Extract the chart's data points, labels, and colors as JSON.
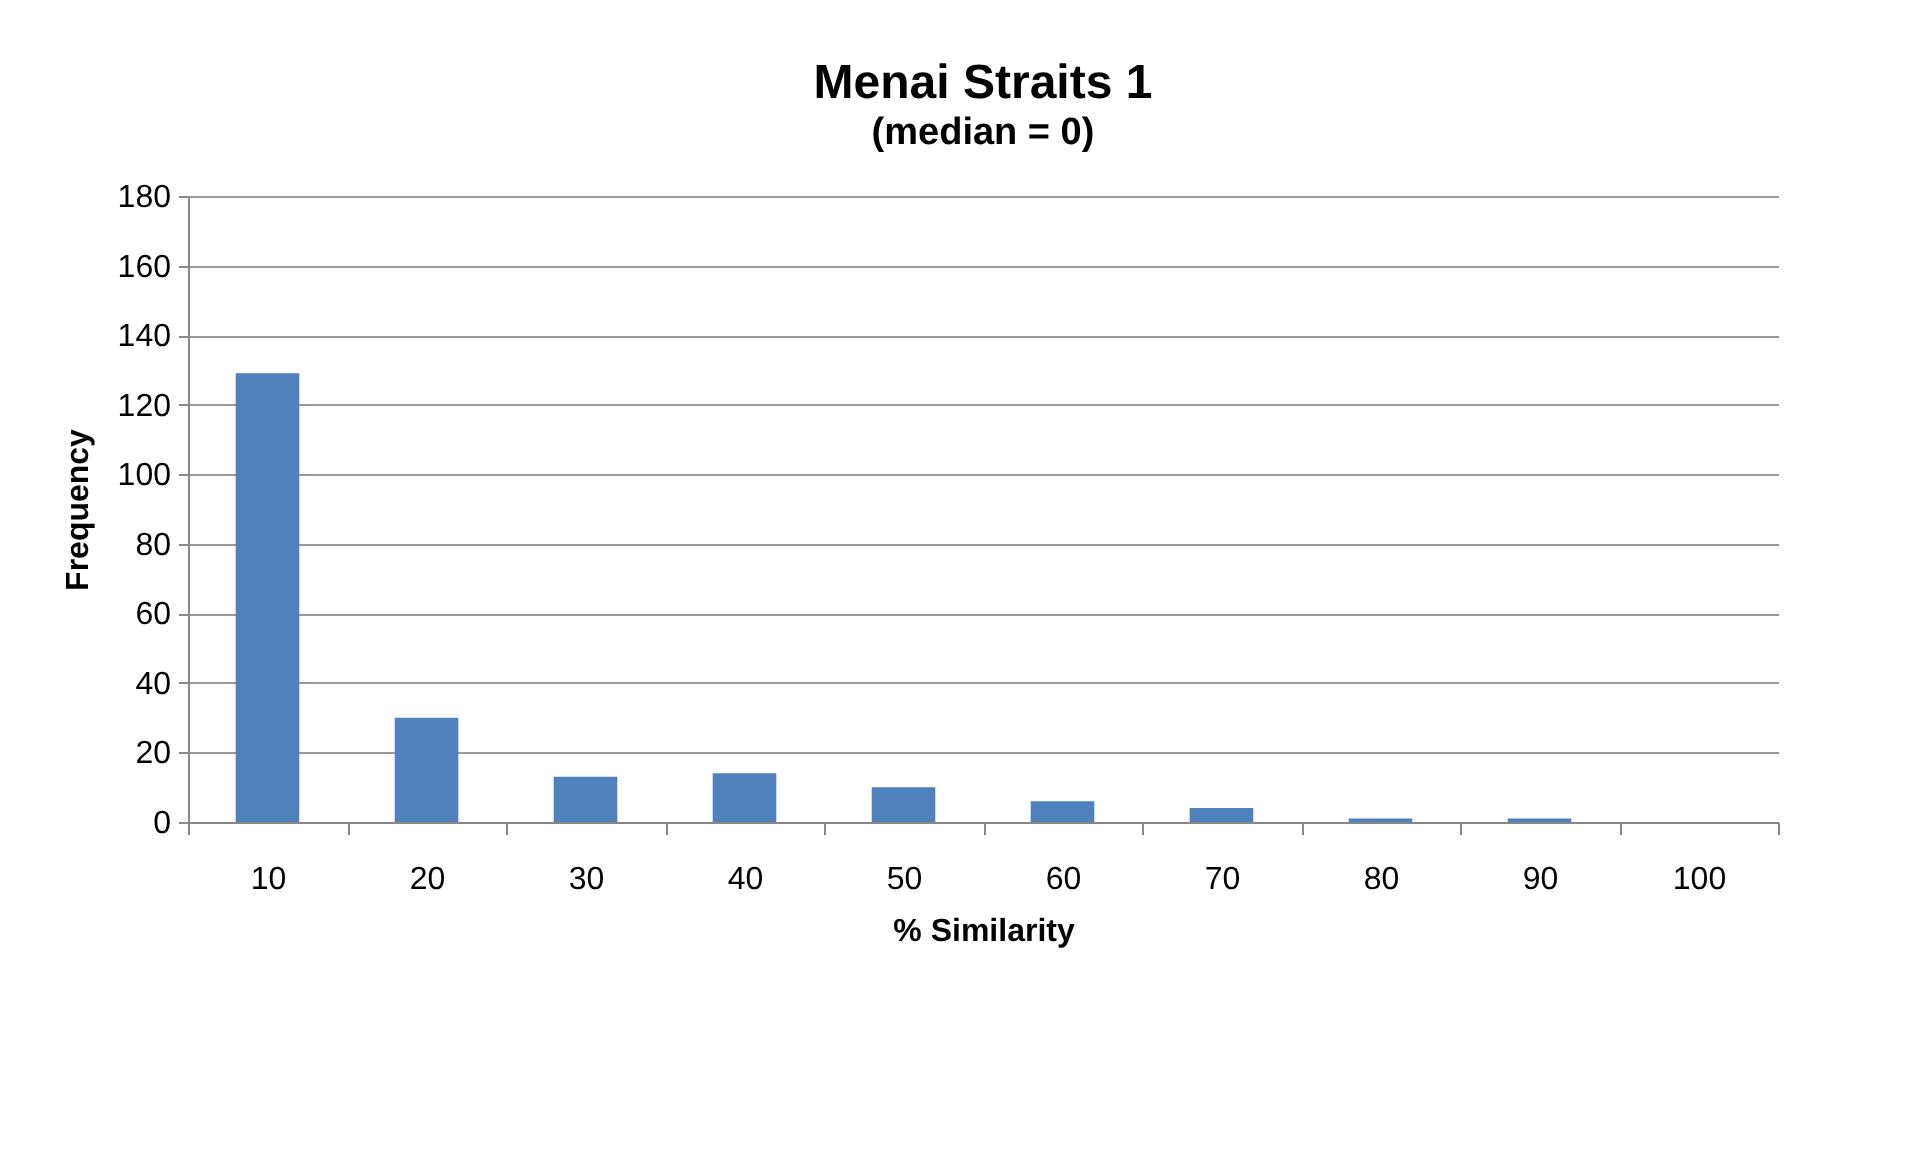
{
  "chart_data": {
    "type": "bar",
    "title": "Menai Straits 1",
    "subtitle": "(median = 0)",
    "xlabel": "% Similarity",
    "ylabel": "Frequency",
    "categories": [
      "10",
      "20",
      "30",
      "40",
      "50",
      "60",
      "70",
      "80",
      "90",
      "100"
    ],
    "values": [
      129,
      30,
      13,
      14,
      10,
      6,
      4,
      1,
      1,
      0
    ],
    "color": "#4f81bd",
    "ylim": [
      0,
      180
    ],
    "yticks": [
      0,
      20,
      40,
      60,
      80,
      100,
      120,
      140,
      160,
      180
    ],
    "grid": "y"
  }
}
